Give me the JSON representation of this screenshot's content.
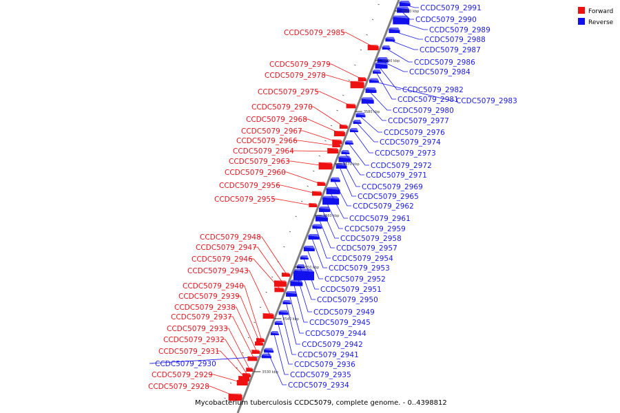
{
  "title": "Mycobacterium tuberculosis CCDC5079, complete genome. - 0..4398812",
  "legend": [
    {
      "label": "Forward",
      "color": "#ee1111"
    },
    {
      "label": "Reverse",
      "color": "#1111ee"
    }
  ],
  "ticks": [
    "3530 kbp",
    "3540 kbp",
    "3550 kbp",
    "3560 kbp",
    "3570 kbp",
    "3580 kbp",
    "3590 kbp",
    "3600 kbp"
  ],
  "forward_genes": [
    "CCDC5079_2985",
    "CCDC5079_2979",
    "CCDC5079_2978",
    "CCDC5079_2975",
    "CCDC5079_2970",
    "CCDC5079_2968",
    "CCDC5079_2967",
    "CCDC5079_2966",
    "CCDC5079_2964",
    "CCDC5079_2963",
    "CCDC5079_2960",
    "CCDC5079_2956",
    "CCDC5079_2955",
    "CCDC5079_2948",
    "CCDC5079_2947",
    "CCDC5079_2946",
    "CCDC5079_2943",
    "CCDC5079_2940",
    "CCDC5079_2939",
    "CCDC5079_2938",
    "CCDC5079_2937",
    "CCDC5079_2933",
    "CCDC5079_2932",
    "CCDC5079_2931",
    "CCDC5079_2929",
    "CCDC5079_2928"
  ],
  "reverse_left_genes": [
    "CCDC5079_2930"
  ],
  "reverse_genes": [
    "CCDC5079_2991",
    "CCDC5079_2990",
    "CCDC5079_2989",
    "CCDC5079_2988",
    "CCDC5079_2987",
    "CCDC5079_2986",
    "CCDC5079_2984",
    "CCDC5079_2982",
    "CCDC5079_2981",
    "CCDC5079_2983",
    "CCDC5079_2980",
    "CCDC5079_2977",
    "CCDC5079_2976",
    "CCDC5079_2974",
    "CCDC5079_2973",
    "CCDC5079_2972",
    "CCDC5079_2971",
    "CCDC5079_2969",
    "CCDC5079_2965",
    "CCDC5079_2962",
    "CCDC5079_2961",
    "CCDC5079_2959",
    "CCDC5079_2958",
    "CCDC5079_2957",
    "CCDC5079_2954",
    "CCDC5079_2953",
    "CCDC5079_2952",
    "CCDC5079_2951",
    "CCDC5079_2950",
    "CCDC5079_2949",
    "CCDC5079_2945",
    "CCDC5079_2944",
    "CCDC5079_2942",
    "CCDC5079_2941",
    "CCDC5079_2936",
    "CCDC5079_2935",
    "CCDC5079_2934"
  ]
}
